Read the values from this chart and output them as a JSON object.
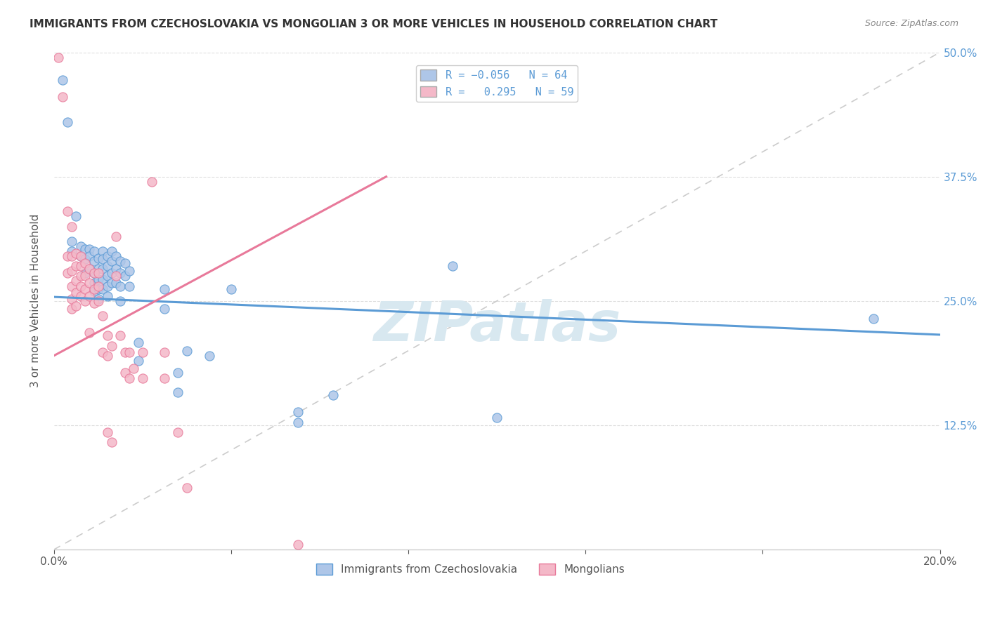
{
  "title": "IMMIGRANTS FROM CZECHOSLOVAKIA VS MONGOLIAN 3 OR MORE VEHICLES IN HOUSEHOLD CORRELATION CHART",
  "source": "Source: ZipAtlas.com",
  "ylabel": "3 or more Vehicles in Household",
  "x_min": 0.0,
  "x_max": 0.2,
  "y_min": 0.0,
  "y_max": 0.5,
  "x_ticks": [
    0.0,
    0.04,
    0.08,
    0.12,
    0.16,
    0.2
  ],
  "x_tick_labels": [
    "0.0%",
    "",
    "",
    "",
    "",
    "20.0%"
  ],
  "y_ticks": [
    0.0,
    0.125,
    0.25,
    0.375,
    0.5
  ],
  "y_tick_labels": [
    "",
    "12.5%",
    "25.0%",
    "37.5%",
    "50.0%"
  ],
  "blue_color": "#5b9bd5",
  "pink_color": "#e8799a",
  "blue_scatter_color": "#aec6e8",
  "pink_scatter_color": "#f4b8c8",
  "watermark": "ZIPatlas",
  "blue_line": [
    [
      0.0,
      0.254
    ],
    [
      0.2,
      0.216
    ]
  ],
  "pink_line": [
    [
      0.0,
      0.195
    ],
    [
      0.075,
      0.375
    ]
  ],
  "diag_line": [
    [
      0.0,
      0.0
    ],
    [
      0.2,
      0.5
    ]
  ],
  "blue_points": [
    [
      0.002,
      0.472
    ],
    [
      0.003,
      0.43
    ],
    [
      0.004,
      0.31
    ],
    [
      0.004,
      0.3
    ],
    [
      0.005,
      0.335
    ],
    [
      0.006,
      0.305
    ],
    [
      0.006,
      0.295
    ],
    [
      0.007,
      0.302
    ],
    [
      0.007,
      0.292
    ],
    [
      0.007,
      0.278
    ],
    [
      0.008,
      0.302
    ],
    [
      0.008,
      0.295
    ],
    [
      0.008,
      0.282
    ],
    [
      0.009,
      0.3
    ],
    [
      0.009,
      0.29
    ],
    [
      0.009,
      0.278
    ],
    [
      0.009,
      0.268
    ],
    [
      0.009,
      0.26
    ],
    [
      0.01,
      0.293
    ],
    [
      0.01,
      0.282
    ],
    [
      0.01,
      0.272
    ],
    [
      0.01,
      0.262
    ],
    [
      0.01,
      0.252
    ],
    [
      0.011,
      0.3
    ],
    [
      0.011,
      0.292
    ],
    [
      0.011,
      0.282
    ],
    [
      0.011,
      0.272
    ],
    [
      0.011,
      0.262
    ],
    [
      0.012,
      0.295
    ],
    [
      0.012,
      0.285
    ],
    [
      0.012,
      0.275
    ],
    [
      0.012,
      0.265
    ],
    [
      0.012,
      0.255
    ],
    [
      0.013,
      0.3
    ],
    [
      0.013,
      0.29
    ],
    [
      0.013,
      0.278
    ],
    [
      0.013,
      0.268
    ],
    [
      0.014,
      0.295
    ],
    [
      0.014,
      0.282
    ],
    [
      0.014,
      0.268
    ],
    [
      0.015,
      0.29
    ],
    [
      0.015,
      0.278
    ],
    [
      0.015,
      0.265
    ],
    [
      0.015,
      0.25
    ],
    [
      0.016,
      0.288
    ],
    [
      0.016,
      0.275
    ],
    [
      0.017,
      0.28
    ],
    [
      0.017,
      0.265
    ],
    [
      0.019,
      0.208
    ],
    [
      0.019,
      0.19
    ],
    [
      0.025,
      0.262
    ],
    [
      0.025,
      0.242
    ],
    [
      0.028,
      0.178
    ],
    [
      0.028,
      0.158
    ],
    [
      0.03,
      0.2
    ],
    [
      0.035,
      0.195
    ],
    [
      0.04,
      0.262
    ],
    [
      0.055,
      0.138
    ],
    [
      0.055,
      0.128
    ],
    [
      0.063,
      0.155
    ],
    [
      0.09,
      0.285
    ],
    [
      0.1,
      0.133
    ],
    [
      0.185,
      0.232
    ]
  ],
  "pink_points": [
    [
      0.001,
      0.495
    ],
    [
      0.002,
      0.455
    ],
    [
      0.003,
      0.34
    ],
    [
      0.003,
      0.295
    ],
    [
      0.003,
      0.278
    ],
    [
      0.004,
      0.325
    ],
    [
      0.004,
      0.295
    ],
    [
      0.004,
      0.28
    ],
    [
      0.004,
      0.265
    ],
    [
      0.004,
      0.252
    ],
    [
      0.004,
      0.242
    ],
    [
      0.005,
      0.298
    ],
    [
      0.005,
      0.285
    ],
    [
      0.005,
      0.27
    ],
    [
      0.005,
      0.258
    ],
    [
      0.005,
      0.245
    ],
    [
      0.006,
      0.295
    ],
    [
      0.006,
      0.285
    ],
    [
      0.006,
      0.275
    ],
    [
      0.006,
      0.265
    ],
    [
      0.006,
      0.255
    ],
    [
      0.007,
      0.288
    ],
    [
      0.007,
      0.275
    ],
    [
      0.007,
      0.262
    ],
    [
      0.007,
      0.25
    ],
    [
      0.008,
      0.282
    ],
    [
      0.008,
      0.268
    ],
    [
      0.008,
      0.255
    ],
    [
      0.008,
      0.218
    ],
    [
      0.009,
      0.278
    ],
    [
      0.009,
      0.262
    ],
    [
      0.009,
      0.248
    ],
    [
      0.01,
      0.278
    ],
    [
      0.01,
      0.265
    ],
    [
      0.01,
      0.25
    ],
    [
      0.011,
      0.235
    ],
    [
      0.011,
      0.198
    ],
    [
      0.012,
      0.215
    ],
    [
      0.012,
      0.195
    ],
    [
      0.012,
      0.118
    ],
    [
      0.013,
      0.205
    ],
    [
      0.013,
      0.108
    ],
    [
      0.014,
      0.315
    ],
    [
      0.014,
      0.275
    ],
    [
      0.015,
      0.215
    ],
    [
      0.016,
      0.198
    ],
    [
      0.016,
      0.178
    ],
    [
      0.017,
      0.198
    ],
    [
      0.017,
      0.172
    ],
    [
      0.018,
      0.182
    ],
    [
      0.02,
      0.198
    ],
    [
      0.02,
      0.172
    ],
    [
      0.022,
      0.37
    ],
    [
      0.025,
      0.198
    ],
    [
      0.025,
      0.172
    ],
    [
      0.028,
      0.118
    ],
    [
      0.03,
      0.062
    ],
    [
      0.055,
      0.005
    ]
  ]
}
